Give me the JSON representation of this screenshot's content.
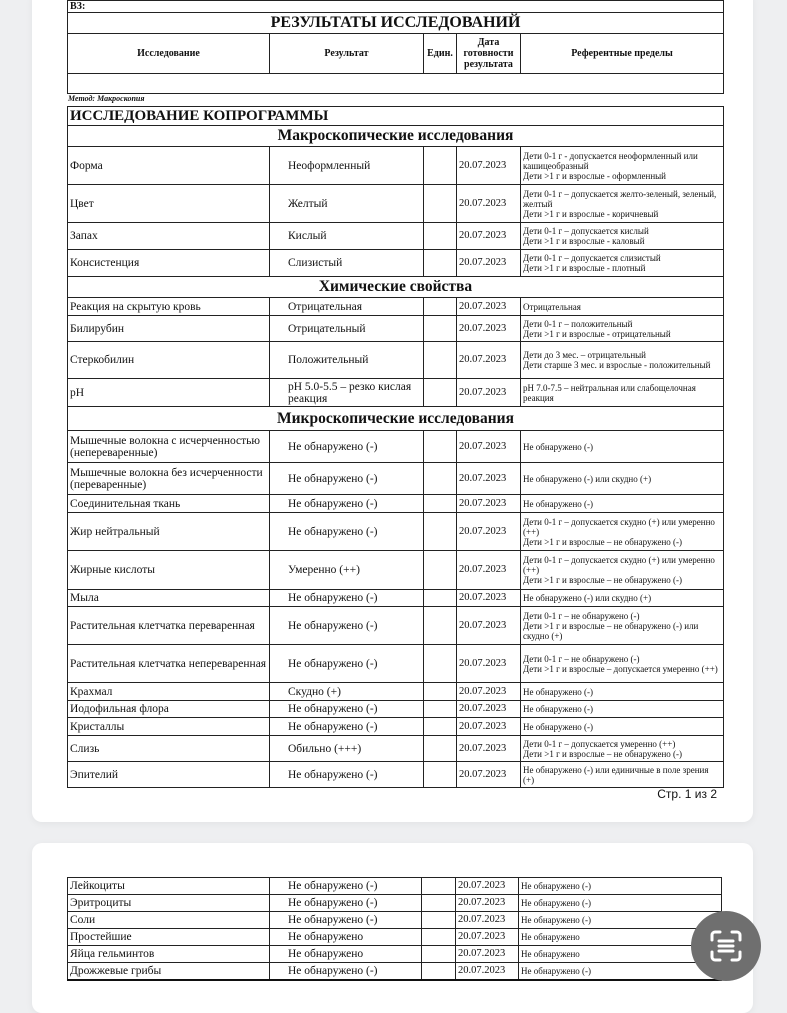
{
  "page1": {
    "top_label": "ВЗ:",
    "title": "РЕЗУЛЬТАТЫ ИССЛЕДОВАНИЙ",
    "columns": [
      "Исследование",
      "Результат",
      "Един.",
      "Дата готовности результата",
      "Референтные пределы"
    ],
    "method": "Метод: Макроскопия",
    "panel_title": "ИССЛЕДОВАНИЕ КОПРОГРАММЫ",
    "sections": [
      {
        "title": "Макроскопические исследования",
        "rows": [
          {
            "name": "Форма",
            "result": "Неоформленный",
            "unit": "",
            "date": "20.07.2023",
            "ref": "Дети 0-1 г - допускается неоформленный или кашицеобразный\nДети >1 г и взрослые - оформленный"
          },
          {
            "name": "Цвет",
            "result": "Желтый",
            "unit": "",
            "date": "20.07.2023",
            "ref": "Дети 0-1 г – допускается желто-зеленый, зеленый, желтый\nДети >1 г и взрослые - коричневый"
          },
          {
            "name": "Запах",
            "result": "Кислый",
            "unit": "",
            "date": "20.07.2023",
            "ref": "Дети 0-1 г – допускается кислый\nДети >1 г и взрослые - каловый"
          },
          {
            "name": "Консистенция",
            "result": "Слизистый",
            "unit": "",
            "date": "20.07.2023",
            "ref": "Дети 0-1 г – допускается слизистый\nДети >1 г и взрослые - плотный"
          }
        ]
      },
      {
        "title": "Химические свойства",
        "rows": [
          {
            "name": "Реакция на скрытую кровь",
            "result": "Отрицательная",
            "unit": "",
            "date": "20.07.2023",
            "ref": "Отрицательная"
          },
          {
            "name": "Билирубин",
            "result": "Отрицательный",
            "unit": "",
            "date": "20.07.2023",
            "ref": "Дети 0-1 г – положительный\nДети >1 г и взрослые - отрицательный"
          },
          {
            "name": "Стеркобилин",
            "result": "Положительный",
            "unit": "",
            "date": "20.07.2023",
            "ref": "Дети до 3 мес. – отрицательный\nДети старше 3 мес. и взрослые - положительный"
          },
          {
            "name": "pH",
            "result": "pH 5.0-5.5 – резко кислая реакция",
            "unit": "",
            "date": "20.07.2023",
            "ref": "pH 7.0-7.5 – нейтральная или слабощелочная реакция"
          }
        ]
      },
      {
        "title": "Микроскопические исследования",
        "rows": [
          {
            "name": "Мышечные волокна с исчерченностью (непереваренные)",
            "result": "Не обнаружено (-)",
            "unit": "",
            "date": "20.07.2023",
            "ref": "Не обнаружено (-)"
          },
          {
            "name": "Мышечные волокна без исчерченности (переваренные)",
            "result": "Не обнаружено (-)",
            "unit": "",
            "date": "20.07.2023",
            "ref": "Не обнаружено (-) или скудно (+)"
          },
          {
            "name": "Соединительная ткань",
            "result": "Не обнаружено (-)",
            "unit": "",
            "date": "20.07.2023",
            "ref": "Не обнаружено (-)"
          },
          {
            "name": "Жир нейтральный",
            "result": "Не обнаружено (-)",
            "unit": "",
            "date": "20.07.2023",
            "ref": "Дети 0-1 г – допускается скудно (+) или умеренно (++)\nДети >1 г и взрослые – не обнаружено (-)"
          },
          {
            "name": "Жирные кислоты",
            "result": "Умеренно (++)",
            "unit": "",
            "date": "20.07.2023",
            "ref": "Дети 0-1 г – допускается скудно (+) или умеренно (++)\nДети >1 г и взрослые – не обнаружено (-)"
          },
          {
            "name": "Мыла",
            "result": "Не обнаружено (-)",
            "unit": "",
            "date": "20.07.2023",
            "ref": "Не обнаружено (-) или скудно (+)"
          },
          {
            "name": "Растительная клетчатка переваренная",
            "result": "Не обнаружено (-)",
            "unit": "",
            "date": "20.07.2023",
            "ref": "Дети 0-1 г – не обнаружено (-)\nДети >1 г и взрослые – не обнаружено (-) или скудно (+)"
          },
          {
            "name": "Растительная клетчатка непереваренная",
            "result": "Не обнаружено (-)",
            "unit": "",
            "date": "20.07.2023",
            "ref": "Дети 0-1 г – не обнаружено (-)\nДети >1 г и взрослые – допускается умеренно (++)"
          },
          {
            "name": "Крахмал",
            "result": "Скудно (+)",
            "unit": "",
            "date": "20.07.2023",
            "ref": "Не обнаружено (-)"
          },
          {
            "name": "Иодофильная флора",
            "result": "Не обнаружено (-)",
            "unit": "",
            "date": "20.07.2023",
            "ref": "Не обнаружено (-)"
          },
          {
            "name": "Кристаллы",
            "result": "Не обнаружено (-)",
            "unit": "",
            "date": "20.07.2023",
            "ref": "Не обнаружено (-)"
          },
          {
            "name": "Слизь",
            "result": "Обильно (+++)",
            "unit": "",
            "date": "20.07.2023",
            "ref": "Дети 0-1 г – допускается умеренно (++)\nДети >1 г и взрослые – не обнаружено (-)"
          },
          {
            "name": "Эпителий",
            "result": "Не обнаружено (-)",
            "unit": "",
            "date": "20.07.2023",
            "ref": "Не обнаружено (-) или единичные в поле зрения (+)"
          }
        ]
      }
    ],
    "page_number": "Стр. 1 из 2"
  },
  "page2": {
    "rows": [
      {
        "name": "Лейкоциты",
        "result": "Не обнаружено (-)",
        "unit": "",
        "date": "20.07.2023",
        "ref": "Не обнаружено (-)"
      },
      {
        "name": "Эритроциты",
        "result": "Не обнаружено (-)",
        "unit": "",
        "date": "20.07.2023",
        "ref": "Не обнаружено (-)"
      },
      {
        "name": "Соли",
        "result": "Не обнаружено (-)",
        "unit": "",
        "date": "20.07.2023",
        "ref": "Не обнаружено (-)"
      },
      {
        "name": "Простейшие",
        "result": "Не обнаружено",
        "unit": "",
        "date": "20.07.2023",
        "ref": "Не обнаружено"
      },
      {
        "name": "Яйца гельминтов",
        "result": "Не обнаружено",
        "unit": "",
        "date": "20.07.2023",
        "ref": "Не обнаружено"
      },
      {
        "name": "Дрожжевые грибы",
        "result": "Не обнаружено (-)",
        "unit": "",
        "date": "20.07.2023",
        "ref": "Не обнаружено (-)"
      }
    ]
  },
  "fab": {
    "icon": "text-scan-icon",
    "color": "#6f6f6f"
  }
}
